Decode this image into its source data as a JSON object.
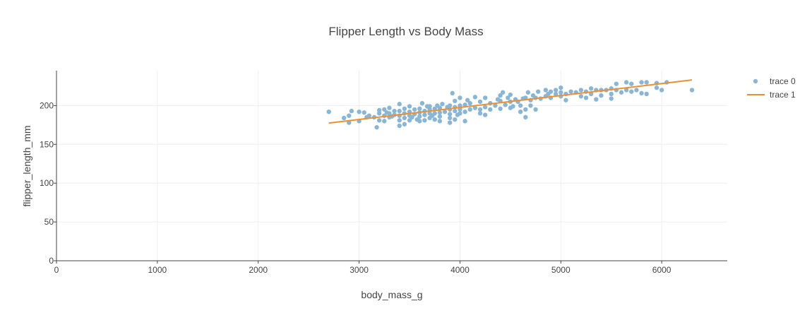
{
  "chart_data": {
    "type": "scatter",
    "title": "Flipper Length vs Body Mass",
    "xlabel": "body_mass_g",
    "ylabel": "flipper_length_mm",
    "xlim": [
      0,
      6650
    ],
    "ylim": [
      0,
      245
    ],
    "x_ticks": [
      0,
      1000,
      2000,
      3000,
      4000,
      5000,
      6000
    ],
    "y_ticks": [
      0,
      50,
      100,
      150,
      200
    ],
    "grid": true,
    "legend_position": "top-right",
    "colors": {
      "scatter": "#8ab6d6",
      "line": "#f28e2b",
      "grid": "#eeeeee",
      "axis": "#444444"
    },
    "series": [
      {
        "name": "trace 0",
        "mode": "markers",
        "points": [
          [
            2700,
            192
          ],
          [
            2850,
            184
          ],
          [
            2900,
            178
          ],
          [
            2900,
            187
          ],
          [
            2925,
            193
          ],
          [
            3000,
            180
          ],
          [
            3000,
            192
          ],
          [
            3050,
            191
          ],
          [
            3075,
            185
          ],
          [
            3100,
            187
          ],
          [
            3150,
            185
          ],
          [
            3175,
            172
          ],
          [
            3200,
            181
          ],
          [
            3200,
            190
          ],
          [
            3200,
            194
          ],
          [
            3250,
            180
          ],
          [
            3250,
            187
          ],
          [
            3250,
            195
          ],
          [
            3275,
            191
          ],
          [
            3300,
            185
          ],
          [
            3300,
            190
          ],
          [
            3300,
            197
          ],
          [
            3325,
            186
          ],
          [
            3350,
            188
          ],
          [
            3350,
            193
          ],
          [
            3400,
            174
          ],
          [
            3400,
            181
          ],
          [
            3400,
            187
          ],
          [
            3400,
            193
          ],
          [
            3400,
            202
          ],
          [
            3450,
            176
          ],
          [
            3450,
            184
          ],
          [
            3450,
            190
          ],
          [
            3450,
            196
          ],
          [
            3500,
            181
          ],
          [
            3500,
            187
          ],
          [
            3500,
            192
          ],
          [
            3500,
            199
          ],
          [
            3525,
            185
          ],
          [
            3550,
            189
          ],
          [
            3550,
            195
          ],
          [
            3575,
            182
          ],
          [
            3600,
            180
          ],
          [
            3600,
            186
          ],
          [
            3600,
            191
          ],
          [
            3600,
            196
          ],
          [
            3625,
            203
          ],
          [
            3650,
            181
          ],
          [
            3650,
            188
          ],
          [
            3650,
            193
          ],
          [
            3675,
            199
          ],
          [
            3700,
            184
          ],
          [
            3700,
            190
          ],
          [
            3700,
            195
          ],
          [
            3700,
            199
          ],
          [
            3725,
            187
          ],
          [
            3750,
            182
          ],
          [
            3750,
            190
          ],
          [
            3750,
            196
          ],
          [
            3775,
            200
          ],
          [
            3800,
            180
          ],
          [
            3800,
            186
          ],
          [
            3800,
            191
          ],
          [
            3800,
            197
          ],
          [
            3825,
            202
          ],
          [
            3850,
            192
          ],
          [
            3875,
            198
          ],
          [
            3900,
            178
          ],
          [
            3900,
            184
          ],
          [
            3900,
            189
          ],
          [
            3900,
            195
          ],
          [
            3900,
            200
          ],
          [
            3925,
            216
          ],
          [
            3950,
            182
          ],
          [
            3950,
            193
          ],
          [
            3950,
            198
          ],
          [
            3950,
            206
          ],
          [
            3975,
            188
          ],
          [
            4000,
            190
          ],
          [
            4000,
            195
          ],
          [
            4000,
            200
          ],
          [
            4000,
            210
          ],
          [
            4050,
            180
          ],
          [
            4050,
            192
          ],
          [
            4050,
            201
          ],
          [
            4075,
            207
          ],
          [
            4100,
            195
          ],
          [
            4100,
            203
          ],
          [
            4150,
            197
          ],
          [
            4150,
            211
          ],
          [
            4200,
            190
          ],
          [
            4200,
            195
          ],
          [
            4200,
            205
          ],
          [
            4250,
            188
          ],
          [
            4250,
            198
          ],
          [
            4250,
            210
          ],
          [
            4300,
            195
          ],
          [
            4300,
            203
          ],
          [
            4350,
            200
          ],
          [
            4375,
            208
          ],
          [
            4400,
            196
          ],
          [
            4400,
            206
          ],
          [
            4400,
            213
          ],
          [
            4425,
            217
          ],
          [
            4450,
            201
          ],
          [
            4475,
            210
          ],
          [
            4500,
            197
          ],
          [
            4500,
            205
          ],
          [
            4500,
            214
          ],
          [
            4525,
            199
          ],
          [
            4550,
            208
          ],
          [
            4575,
            205
          ],
          [
            4600,
            192
          ],
          [
            4600,
            200
          ],
          [
            4625,
            209
          ],
          [
            4650,
            185
          ],
          [
            4650,
            195
          ],
          [
            4650,
            210
          ],
          [
            4675,
            217
          ],
          [
            4700,
            200
          ],
          [
            4700,
            207
          ],
          [
            4725,
            213
          ],
          [
            4750,
            195
          ],
          [
            4750,
            210
          ],
          [
            4775,
            218
          ],
          [
            4800,
            209
          ],
          [
            4850,
            212
          ],
          [
            4850,
            220
          ],
          [
            4875,
            215
          ],
          [
            4900,
            210
          ],
          [
            4900,
            218
          ],
          [
            4950,
            215
          ],
          [
            4950,
            220
          ],
          [
            5000,
            212
          ],
          [
            5000,
            217
          ],
          [
            5000,
            223
          ],
          [
            5050,
            207
          ],
          [
            5050,
            215
          ],
          [
            5100,
            218
          ],
          [
            5150,
            217
          ],
          [
            5200,
            212
          ],
          [
            5200,
            220
          ],
          [
            5250,
            210
          ],
          [
            5250,
            218
          ],
          [
            5300,
            215
          ],
          [
            5300,
            222
          ],
          [
            5350,
            208
          ],
          [
            5350,
            220
          ],
          [
            5400,
            213
          ],
          [
            5400,
            220
          ],
          [
            5450,
            220
          ],
          [
            5500,
            209
          ],
          [
            5500,
            215
          ],
          [
            5500,
            222
          ],
          [
            5550,
            220
          ],
          [
            5550,
            228
          ],
          [
            5600,
            217
          ],
          [
            5650,
            220
          ],
          [
            5650,
            230
          ],
          [
            5700,
            218
          ],
          [
            5700,
            228
          ],
          [
            5750,
            220
          ],
          [
            5800,
            216
          ],
          [
            5800,
            230
          ],
          [
            5850,
            215
          ],
          [
            5850,
            230
          ],
          [
            5950,
            223
          ],
          [
            5950,
            229
          ],
          [
            6000,
            220
          ],
          [
            6050,
            230
          ],
          [
            6300,
            220
          ]
        ]
      },
      {
        "name": "trace 1",
        "mode": "lines",
        "points": [
          [
            2700,
            177.5
          ],
          [
            6300,
            233
          ]
        ]
      }
    ]
  }
}
